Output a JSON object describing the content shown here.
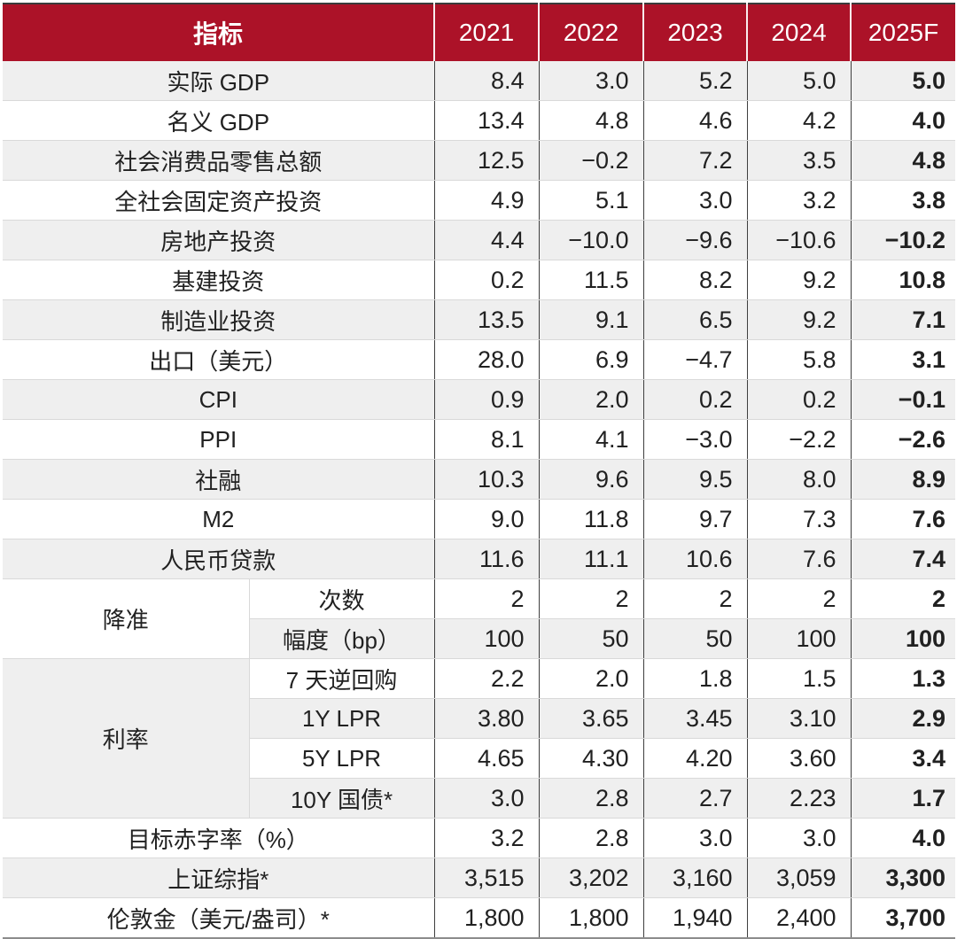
{
  "chart_data": {
    "type": "table",
    "header": {
      "indicator": "指标",
      "years": [
        "2021",
        "2022",
        "2023",
        "2024",
        "2025F"
      ]
    },
    "row_groups": [
      {
        "label": "降准",
        "rows": "次数 / 幅度（bp）"
      },
      {
        "label": "利率",
        "rows": "7 天逆回购 / 1Y LPR / 5Y LPR / 10Y 国债*"
      }
    ],
    "rows": [
      {
        "label": "实际 GDP",
        "values": [
          "8.4",
          "3.0",
          "5.2",
          "5.0",
          "5.0"
        ]
      },
      {
        "label": "名义 GDP",
        "values": [
          "13.4",
          "4.8",
          "4.6",
          "4.2",
          "4.0"
        ]
      },
      {
        "label": "社会消费品零售总额",
        "values": [
          "12.5",
          "−0.2",
          "7.2",
          "3.5",
          "4.8"
        ]
      },
      {
        "label": "全社会固定资产投资",
        "values": [
          "4.9",
          "5.1",
          "3.0",
          "3.2",
          "3.8"
        ]
      },
      {
        "label": "房地产投资",
        "values": [
          "4.4",
          "−10.0",
          "−9.6",
          "−10.6",
          "−10.2"
        ]
      },
      {
        "label": "基建投资",
        "values": [
          "0.2",
          "11.5",
          "8.2",
          "9.2",
          "10.8"
        ]
      },
      {
        "label": "制造业投资",
        "values": [
          "13.5",
          "9.1",
          "6.5",
          "9.2",
          "7.1"
        ]
      },
      {
        "label": "出口（美元）",
        "values": [
          "28.0",
          "6.9",
          "−4.7",
          "5.8",
          "3.1"
        ]
      },
      {
        "label": "CPI",
        "values": [
          "0.9",
          "2.0",
          "0.2",
          "0.2",
          "−0.1"
        ]
      },
      {
        "label": "PPI",
        "values": [
          "8.1",
          "4.1",
          "−3.0",
          "−2.2",
          "−2.6"
        ]
      },
      {
        "label": "社融",
        "values": [
          "10.3",
          "9.6",
          "9.5",
          "8.0",
          "8.9"
        ]
      },
      {
        "label": "M2",
        "values": [
          "9.0",
          "11.8",
          "9.7",
          "7.3",
          "7.6"
        ]
      },
      {
        "label": "人民币贷款",
        "values": [
          "11.6",
          "11.1",
          "10.6",
          "7.6",
          "7.4"
        ]
      },
      {
        "label": "次数",
        "values": [
          "2",
          "2",
          "2",
          "2",
          "2"
        ]
      },
      {
        "label": "幅度（bp）",
        "values": [
          "100",
          "50",
          "50",
          "100",
          "100"
        ]
      },
      {
        "label": "7 天逆回购",
        "values": [
          "2.2",
          "2.0",
          "1.8",
          "1.5",
          "1.3"
        ]
      },
      {
        "label": "1Y LPR",
        "values": [
          "3.80",
          "3.65",
          "3.45",
          "3.10",
          "2.9"
        ]
      },
      {
        "label": "5Y LPR",
        "values": [
          "4.65",
          "4.30",
          "4.20",
          "3.60",
          "3.4"
        ]
      },
      {
        "label": "10Y 国债*",
        "values": [
          "3.0",
          "2.8",
          "2.7",
          "2.23",
          "1.7"
        ]
      },
      {
        "label": "目标赤字率（%）",
        "values": [
          "3.2",
          "2.8",
          "3.0",
          "3.0",
          "4.0"
        ]
      },
      {
        "label": "上证综指*",
        "values": [
          "3,515",
          "3,202",
          "3,160",
          "3,059",
          "3,300"
        ]
      },
      {
        "label": "伦敦金（美元/盎司）*",
        "values": [
          "1,800",
          "1,800",
          "1,940",
          "2,400",
          "3,700"
        ]
      }
    ]
  },
  "colors": {
    "header_bg": "#AC1228",
    "header_fg": "#FFFFFF",
    "body_fg": "#212121",
    "row_gray": "#EFEFEF",
    "grid_dark": "#3F3F3F",
    "grid_light": "#D9D9D9",
    "border_top": "#3B3B3B",
    "border_bottom": "#8C8C8C"
  }
}
